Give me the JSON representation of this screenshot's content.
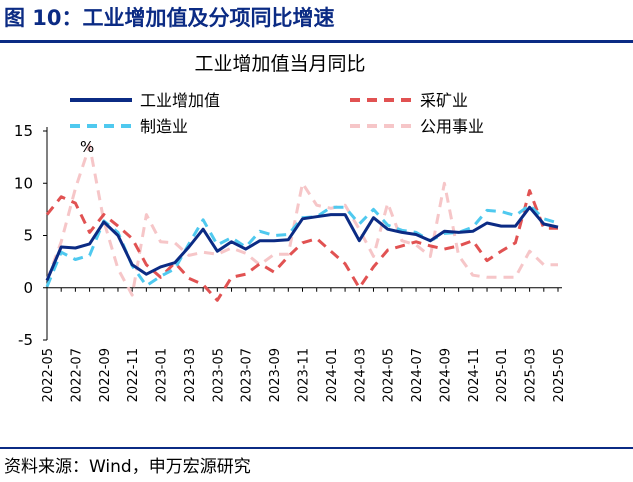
{
  "header": {
    "title": "图 10：工业增加值及分项同比增速"
  },
  "footer": {
    "source": "资料来源：Wind，申万宏源研究"
  },
  "chart_data": {
    "type": "line",
    "title": "工业增加值当月同比",
    "unit_label": "%",
    "ylim": [
      -5,
      15
    ],
    "yticks": [
      -5,
      0,
      5,
      10,
      15
    ],
    "x": [
      "2022-05",
      "2022-06",
      "2022-07",
      "2022-08",
      "2022-09",
      "2022-10",
      "2022-11",
      "2022-12",
      "2023-01",
      "2023-02",
      "2023-03",
      "2023-04",
      "2023-05",
      "2023-06",
      "2023-07",
      "2023-08",
      "2023-09",
      "2023-10",
      "2023-11",
      "2023-12",
      "2024-01",
      "2024-02",
      "2024-03",
      "2024-04",
      "2024-05",
      "2024-06",
      "2024-07",
      "2024-08",
      "2024-09",
      "2024-10",
      "2024-11",
      "2024-12",
      "2025-01",
      "2025-02",
      "2025-03",
      "2025-04",
      "2025-05"
    ],
    "x_tick_labels": [
      "2022-05",
      "2022-07",
      "2022-09",
      "2022-11",
      "2023-01",
      "2023-03",
      "2023-05",
      "2023-07",
      "2023-09",
      "2023-11",
      "2024-01",
      "2024-03",
      "2024-05",
      "2024-07",
      "2024-09",
      "2024-11",
      "2025-01",
      "2025-03",
      "2025-05"
    ],
    "legend_placement": "top",
    "series": [
      {
        "name": "工业增加值",
        "color": "#0b2b84",
        "dash": "solid",
        "values": [
          0.7,
          3.9,
          3.8,
          4.2,
          6.3,
          5.0,
          2.2,
          1.3,
          2.0,
          2.4,
          3.9,
          5.6,
          3.5,
          4.4,
          3.7,
          4.5,
          4.5,
          4.6,
          6.6,
          6.8,
          7.0,
          7.0,
          4.5,
          6.7,
          5.6,
          5.3,
          5.1,
          4.5,
          5.4,
          5.3,
          5.4,
          6.2,
          5.9,
          5.9,
          7.7,
          6.1,
          5.8
        ]
      },
      {
        "name": "采矿业",
        "color": "#e15252",
        "dash": "dash",
        "values": [
          7.0,
          8.7,
          8.1,
          5.3,
          7.0,
          5.9,
          4.7,
          2.2,
          1.0,
          2.4,
          0.9,
          0.3,
          -1.2,
          1.0,
          1.3,
          2.3,
          1.5,
          3.0,
          4.3,
          4.7,
          3.5,
          2.3,
          0.0,
          2.0,
          3.6,
          4.0,
          4.4,
          4.0,
          3.7,
          4.0,
          4.5,
          2.6,
          3.5,
          4.3,
          9.3,
          5.7,
          5.7
        ]
      },
      {
        "name": "制造业",
        "color": "#4fc9ef",
        "dash": "dash",
        "values": [
          0.1,
          3.4,
          2.7,
          3.1,
          6.4,
          5.3,
          2.1,
          0.2,
          1.1,
          1.8,
          4.2,
          6.5,
          4.1,
          4.8,
          3.9,
          5.4,
          5.0,
          5.1,
          6.7,
          6.8,
          7.7,
          7.7,
          6.1,
          7.5,
          6.0,
          5.5,
          5.3,
          4.5,
          5.2,
          5.3,
          5.8,
          7.4,
          7.3,
          6.9,
          7.9,
          6.6,
          6.2
        ]
      },
      {
        "name": "公用事业",
        "color": "#f6c6c8",
        "dash": "dash",
        "values": [
          0.7,
          4.4,
          9.5,
          13.6,
          6.4,
          1.8,
          -0.7,
          7.0,
          4.4,
          4.3,
          3.1,
          3.4,
          3.2,
          3.8,
          3.3,
          2.2,
          3.2,
          3.2,
          10.0,
          7.9,
          7.6,
          7.9,
          5.6,
          3.0,
          8.1,
          4.5,
          4.1,
          3.0,
          10.0,
          3.1,
          1.2,
          1.0,
          1.0,
          1.0,
          3.5,
          2.2,
          2.2
        ]
      }
    ]
  }
}
